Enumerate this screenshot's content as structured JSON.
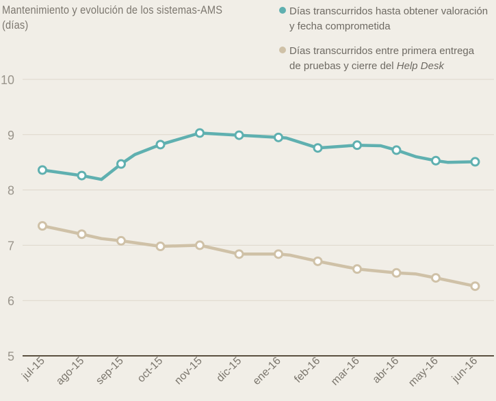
{
  "chart_data": {
    "type": "line",
    "title": "Mantenimiento y evolución de los sistemas-AMS",
    "subtitle": "(días)",
    "xlabel": "",
    "ylabel": "",
    "ylim": [
      5,
      10
    ],
    "yticks": [
      5,
      6,
      7,
      8,
      9,
      10
    ],
    "grid": true,
    "legend_position": "top-right",
    "categories": [
      "jul-15",
      "ago-15",
      "sep-15",
      "oct-15",
      "nov-15",
      "dic-15",
      "ene-16",
      "feb-16",
      "mar-16",
      "abr-16",
      "may-16",
      "jun-16"
    ],
    "series": [
      {
        "name": "Días transcurridos hasta obtener valoración y fecha comprometida",
        "legend_lines": [
          "Días transcurridos hasta obtener valoración",
          "y fecha comprometida"
        ],
        "color": "#5fb0b0",
        "values": [
          8.36,
          8.26,
          8.47,
          8.82,
          9.03,
          8.99,
          8.95,
          8.76,
          8.81,
          8.72,
          8.53,
          8.51
        ],
        "path": [
          [
            0,
            8.36
          ],
          [
            1,
            8.26
          ],
          [
            1.5,
            8.19
          ],
          [
            2,
            8.47
          ],
          [
            2.35,
            8.64
          ],
          [
            3,
            8.82
          ],
          [
            4,
            9.03
          ],
          [
            5,
            8.99
          ],
          [
            6,
            8.95
          ],
          [
            6.2,
            8.94
          ],
          [
            7,
            8.76
          ],
          [
            8,
            8.81
          ],
          [
            8.6,
            8.8
          ],
          [
            9,
            8.72
          ],
          [
            9.5,
            8.6
          ],
          [
            10,
            8.53
          ],
          [
            10.3,
            8.5
          ],
          [
            11,
            8.51
          ]
        ]
      },
      {
        "name": "Días transcurridos entre primera entrega de pruebas y cierre del Help Desk",
        "legend_lines": [
          "Días transcurridos entre primera entrega",
          "de pruebas y cierre del",
          "Help Desk"
        ],
        "color": "#cfc1a7",
        "values": [
          7.35,
          7.2,
          7.08,
          6.98,
          7.0,
          6.84,
          6.84,
          6.71,
          6.57,
          6.5,
          6.41,
          6.26
        ],
        "path": [
          [
            0,
            7.35
          ],
          [
            1,
            7.2
          ],
          [
            1.5,
            7.12
          ],
          [
            2,
            7.08
          ],
          [
            3,
            6.98
          ],
          [
            4,
            7.0
          ],
          [
            5,
            6.84
          ],
          [
            6,
            6.84
          ],
          [
            6.3,
            6.82
          ],
          [
            7,
            6.71
          ],
          [
            8,
            6.57
          ],
          [
            9,
            6.5
          ],
          [
            9.5,
            6.48
          ],
          [
            10,
            6.41
          ],
          [
            11,
            6.26
          ]
        ]
      }
    ]
  }
}
